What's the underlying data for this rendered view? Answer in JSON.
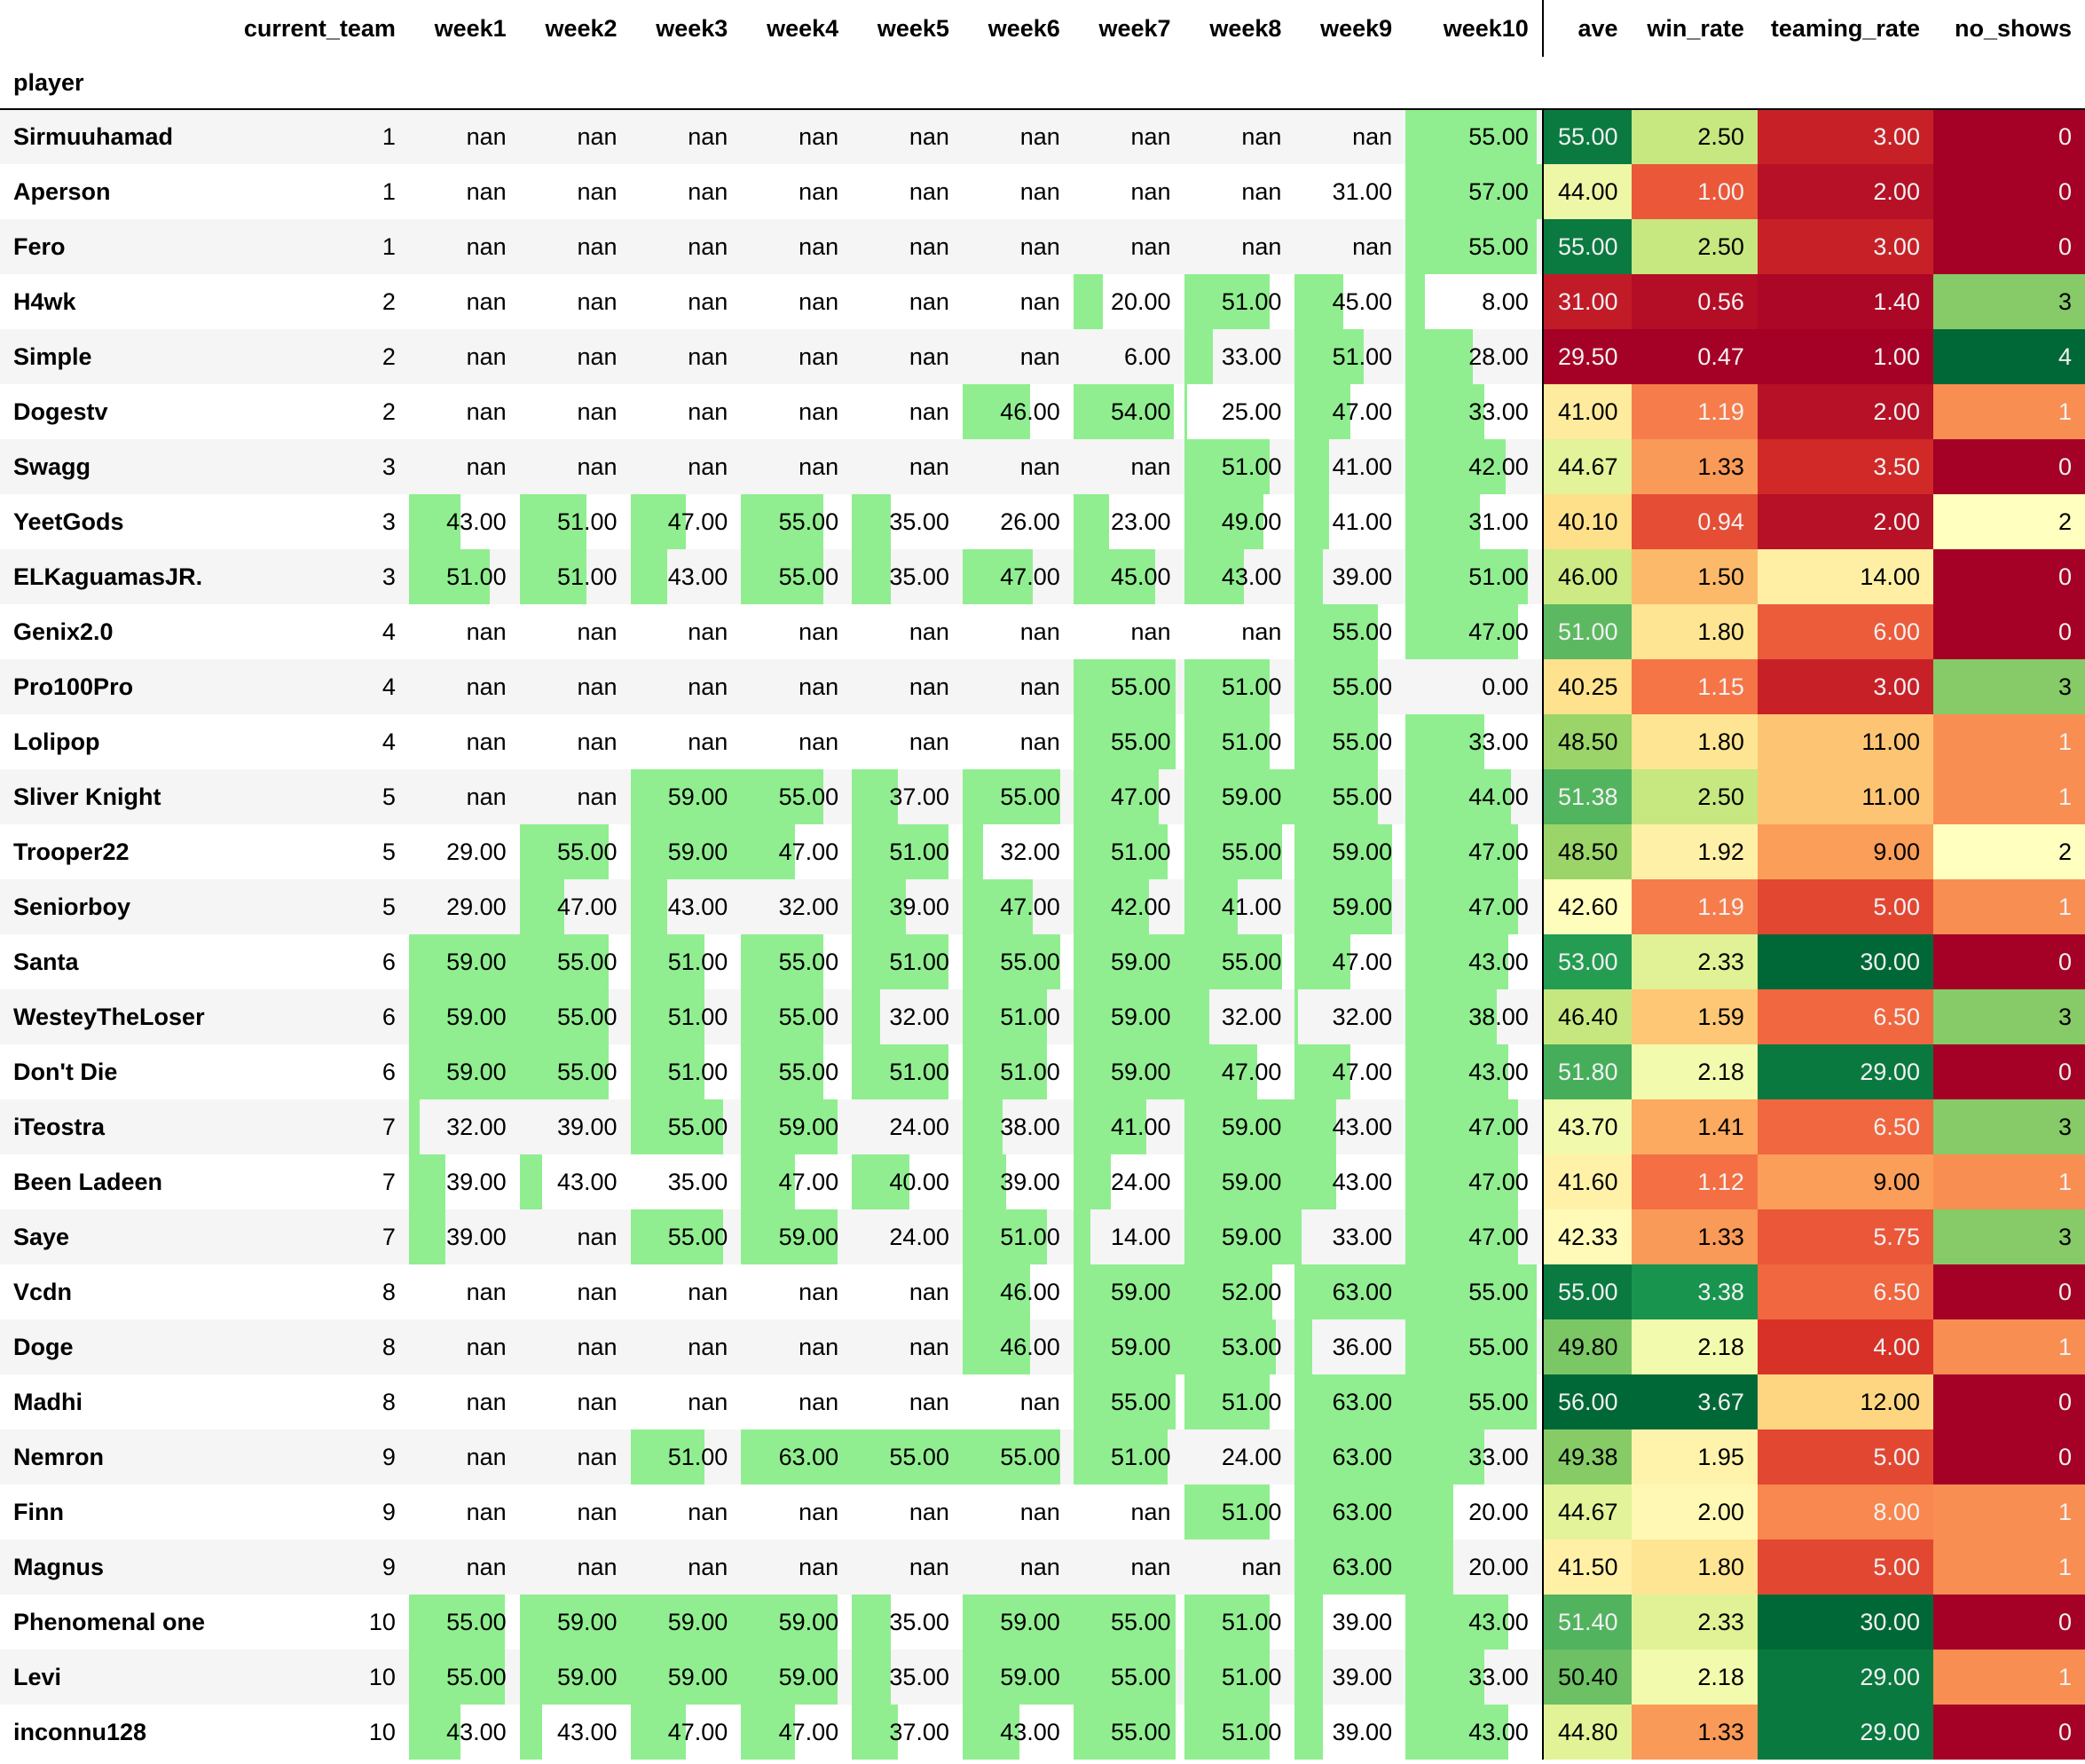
{
  "table": {
    "index_name": "player",
    "columns": [
      "current_team",
      "week1",
      "week2",
      "week3",
      "week4",
      "week5",
      "week6",
      "week7",
      "week8",
      "week9",
      "week10",
      "ave",
      "win_rate",
      "teaming_rate",
      "no_shows"
    ],
    "rows": [
      {
        "player": "Sirmuuhamad",
        "team": "1",
        "weeks": [
          "nan",
          "nan",
          "nan",
          "nan",
          "nan",
          "nan",
          "nan",
          "nan",
          "nan",
          "55.00"
        ],
        "ave": "55.00",
        "win_rate": "2.50",
        "teaming_rate": "3.00",
        "no_shows": "0"
      },
      {
        "player": "Aperson",
        "team": "1",
        "weeks": [
          "nan",
          "nan",
          "nan",
          "nan",
          "nan",
          "nan",
          "nan",
          "nan",
          "31.00",
          "57.00"
        ],
        "ave": "44.00",
        "win_rate": "1.00",
        "teaming_rate": "2.00",
        "no_shows": "0"
      },
      {
        "player": "Fero",
        "team": "1",
        "weeks": [
          "nan",
          "nan",
          "nan",
          "nan",
          "nan",
          "nan",
          "nan",
          "nan",
          "nan",
          "55.00"
        ],
        "ave": "55.00",
        "win_rate": "2.50",
        "teaming_rate": "3.00",
        "no_shows": "0"
      },
      {
        "player": "H4wk",
        "team": "2",
        "weeks": [
          "nan",
          "nan",
          "nan",
          "nan",
          "nan",
          "nan",
          "20.00",
          "51.00",
          "45.00",
          "8.00"
        ],
        "ave": "31.00",
        "win_rate": "0.56",
        "teaming_rate": "1.40",
        "no_shows": "3"
      },
      {
        "player": "Simple",
        "team": "2",
        "weeks": [
          "nan",
          "nan",
          "nan",
          "nan",
          "nan",
          "nan",
          "6.00",
          "33.00",
          "51.00",
          "28.00"
        ],
        "ave": "29.50",
        "win_rate": "0.47",
        "teaming_rate": "1.00",
        "no_shows": "4"
      },
      {
        "player": "Dogestv",
        "team": "2",
        "weeks": [
          "nan",
          "nan",
          "nan",
          "nan",
          "nan",
          "46.00",
          "54.00",
          "25.00",
          "47.00",
          "33.00"
        ],
        "ave": "41.00",
        "win_rate": "1.19",
        "teaming_rate": "2.00",
        "no_shows": "1"
      },
      {
        "player": "Swagg",
        "team": "3",
        "weeks": [
          "nan",
          "nan",
          "nan",
          "nan",
          "nan",
          "nan",
          "nan",
          "51.00",
          "41.00",
          "42.00"
        ],
        "ave": "44.67",
        "win_rate": "1.33",
        "teaming_rate": "3.50",
        "no_shows": "0"
      },
      {
        "player": "YeetGods",
        "team": "3",
        "weeks": [
          "43.00",
          "51.00",
          "47.00",
          "55.00",
          "35.00",
          "26.00",
          "23.00",
          "49.00",
          "41.00",
          "31.00"
        ],
        "ave": "40.10",
        "win_rate": "0.94",
        "teaming_rate": "2.00",
        "no_shows": "2"
      },
      {
        "player": "ELKaguamasJR.",
        "team": "3",
        "weeks": [
          "51.00",
          "51.00",
          "43.00",
          "55.00",
          "35.00",
          "47.00",
          "45.00",
          "43.00",
          "39.00",
          "51.00"
        ],
        "ave": "46.00",
        "win_rate": "1.50",
        "teaming_rate": "14.00",
        "no_shows": "0"
      },
      {
        "player": "Genix2.0",
        "team": "4",
        "weeks": [
          "nan",
          "nan",
          "nan",
          "nan",
          "nan",
          "nan",
          "nan",
          "nan",
          "55.00",
          "47.00"
        ],
        "ave": "51.00",
        "win_rate": "1.80",
        "teaming_rate": "6.00",
        "no_shows": "0"
      },
      {
        "player": "Pro100Pro",
        "team": "4",
        "weeks": [
          "nan",
          "nan",
          "nan",
          "nan",
          "nan",
          "nan",
          "55.00",
          "51.00",
          "55.00",
          "0.00"
        ],
        "ave": "40.25",
        "win_rate": "1.15",
        "teaming_rate": "3.00",
        "no_shows": "3"
      },
      {
        "player": "Lolipop",
        "team": "4",
        "weeks": [
          "nan",
          "nan",
          "nan",
          "nan",
          "nan",
          "nan",
          "55.00",
          "51.00",
          "55.00",
          "33.00"
        ],
        "ave": "48.50",
        "win_rate": "1.80",
        "teaming_rate": "11.00",
        "no_shows": "1"
      },
      {
        "player": "Sliver Knight",
        "team": "5",
        "weeks": [
          "nan",
          "nan",
          "59.00",
          "55.00",
          "37.00",
          "55.00",
          "47.00",
          "59.00",
          "55.00",
          "44.00"
        ],
        "ave": "51.38",
        "win_rate": "2.50",
        "teaming_rate": "11.00",
        "no_shows": "1"
      },
      {
        "player": "Trooper22",
        "team": "5",
        "weeks": [
          "29.00",
          "55.00",
          "59.00",
          "47.00",
          "51.00",
          "32.00",
          "51.00",
          "55.00",
          "59.00",
          "47.00"
        ],
        "ave": "48.50",
        "win_rate": "1.92",
        "teaming_rate": "9.00",
        "no_shows": "2"
      },
      {
        "player": "Seniorboy",
        "team": "5",
        "weeks": [
          "29.00",
          "47.00",
          "43.00",
          "32.00",
          "39.00",
          "47.00",
          "42.00",
          "41.00",
          "59.00",
          "47.00"
        ],
        "ave": "42.60",
        "win_rate": "1.19",
        "teaming_rate": "5.00",
        "no_shows": "1"
      },
      {
        "player": "Santa",
        "team": "6",
        "weeks": [
          "59.00",
          "55.00",
          "51.00",
          "55.00",
          "51.00",
          "55.00",
          "59.00",
          "55.00",
          "47.00",
          "43.00"
        ],
        "ave": "53.00",
        "win_rate": "2.33",
        "teaming_rate": "30.00",
        "no_shows": "0"
      },
      {
        "player": "WesteyTheLoser",
        "team": "6",
        "weeks": [
          "59.00",
          "55.00",
          "51.00",
          "55.00",
          "32.00",
          "51.00",
          "59.00",
          "32.00",
          "32.00",
          "38.00"
        ],
        "ave": "46.40",
        "win_rate": "1.59",
        "teaming_rate": "6.50",
        "no_shows": "3"
      },
      {
        "player": "Don't Die",
        "team": "6",
        "weeks": [
          "59.00",
          "55.00",
          "51.00",
          "55.00",
          "51.00",
          "51.00",
          "59.00",
          "47.00",
          "47.00",
          "43.00"
        ],
        "ave": "51.80",
        "win_rate": "2.18",
        "teaming_rate": "29.00",
        "no_shows": "0"
      },
      {
        "player": "iTeostra",
        "team": "7",
        "weeks": [
          "32.00",
          "39.00",
          "55.00",
          "59.00",
          "24.00",
          "38.00",
          "41.00",
          "59.00",
          "43.00",
          "47.00"
        ],
        "ave": "43.70",
        "win_rate": "1.41",
        "teaming_rate": "6.50",
        "no_shows": "3"
      },
      {
        "player": "Been Ladeen",
        "team": "7",
        "weeks": [
          "39.00",
          "43.00",
          "35.00",
          "47.00",
          "40.00",
          "39.00",
          "24.00",
          "59.00",
          "43.00",
          "47.00"
        ],
        "ave": "41.60",
        "win_rate": "1.12",
        "teaming_rate": "9.00",
        "no_shows": "1"
      },
      {
        "player": "Saye",
        "team": "7",
        "weeks": [
          "39.00",
          "nan",
          "55.00",
          "59.00",
          "24.00",
          "51.00",
          "14.00",
          "59.00",
          "33.00",
          "47.00"
        ],
        "ave": "42.33",
        "win_rate": "1.33",
        "teaming_rate": "5.75",
        "no_shows": "3"
      },
      {
        "player": "Vcdn",
        "team": "8",
        "weeks": [
          "nan",
          "nan",
          "nan",
          "nan",
          "nan",
          "46.00",
          "59.00",
          "52.00",
          "63.00",
          "55.00"
        ],
        "ave": "55.00",
        "win_rate": "3.38",
        "teaming_rate": "6.50",
        "no_shows": "0"
      },
      {
        "player": "Doge",
        "team": "8",
        "weeks": [
          "nan",
          "nan",
          "nan",
          "nan",
          "nan",
          "46.00",
          "59.00",
          "53.00",
          "36.00",
          "55.00"
        ],
        "ave": "49.80",
        "win_rate": "2.18",
        "teaming_rate": "4.00",
        "no_shows": "1"
      },
      {
        "player": "Madhi",
        "team": "8",
        "weeks": [
          "nan",
          "nan",
          "nan",
          "nan",
          "nan",
          "nan",
          "55.00",
          "51.00",
          "63.00",
          "55.00"
        ],
        "ave": "56.00",
        "win_rate": "3.67",
        "teaming_rate": "12.00",
        "no_shows": "0"
      },
      {
        "player": "Nemron",
        "team": "9",
        "weeks": [
          "nan",
          "nan",
          "51.00",
          "63.00",
          "55.00",
          "55.00",
          "51.00",
          "24.00",
          "63.00",
          "33.00"
        ],
        "ave": "49.38",
        "win_rate": "1.95",
        "teaming_rate": "5.00",
        "no_shows": "0"
      },
      {
        "player": "Finn",
        "team": "9",
        "weeks": [
          "nan",
          "nan",
          "nan",
          "nan",
          "nan",
          "nan",
          "nan",
          "51.00",
          "63.00",
          "20.00"
        ],
        "ave": "44.67",
        "win_rate": "2.00",
        "teaming_rate": "8.00",
        "no_shows": "1"
      },
      {
        "player": "Magnus",
        "team": "9",
        "weeks": [
          "nan",
          "nan",
          "nan",
          "nan",
          "nan",
          "nan",
          "nan",
          "nan",
          "63.00",
          "20.00"
        ],
        "ave": "41.50",
        "win_rate": "1.80",
        "teaming_rate": "5.00",
        "no_shows": "1"
      },
      {
        "player": "Phenomenal one",
        "team": "10",
        "weeks": [
          "55.00",
          "59.00",
          "59.00",
          "59.00",
          "35.00",
          "59.00",
          "55.00",
          "51.00",
          "39.00",
          "43.00"
        ],
        "ave": "51.40",
        "win_rate": "2.33",
        "teaming_rate": "30.00",
        "no_shows": "0"
      },
      {
        "player": "Levi",
        "team": "10",
        "weeks": [
          "55.00",
          "59.00",
          "59.00",
          "59.00",
          "35.00",
          "59.00",
          "55.00",
          "51.00",
          "39.00",
          "33.00"
        ],
        "ave": "50.40",
        "win_rate": "2.18",
        "teaming_rate": "29.00",
        "no_shows": "1"
      },
      {
        "player": "inconnu128",
        "team": "10",
        "weeks": [
          "43.00",
          "43.00",
          "47.00",
          "47.00",
          "37.00",
          "43.00",
          "55.00",
          "51.00",
          "39.00",
          "43.00"
        ],
        "ave": "44.80",
        "win_rate": "1.33",
        "teaming_rate": "29.00",
        "no_shows": "0"
      }
    ]
  },
  "colors": {
    "bar_fill": "#90ee90",
    "row_even": "#f5f5f5",
    "row_odd": "#ffffff",
    "heatmap_scale": [
      "#a50026",
      "#d73027",
      "#f46d43",
      "#fdae61",
      "#fee08b",
      "#ffffbf",
      "#d9ef8b",
      "#a6d96a",
      "#66bd63",
      "#1a9850",
      "#006837"
    ],
    "heatmap_text_dark_bg": "#f1f1f1",
    "heatmap_text_light_bg": "#000000"
  }
}
